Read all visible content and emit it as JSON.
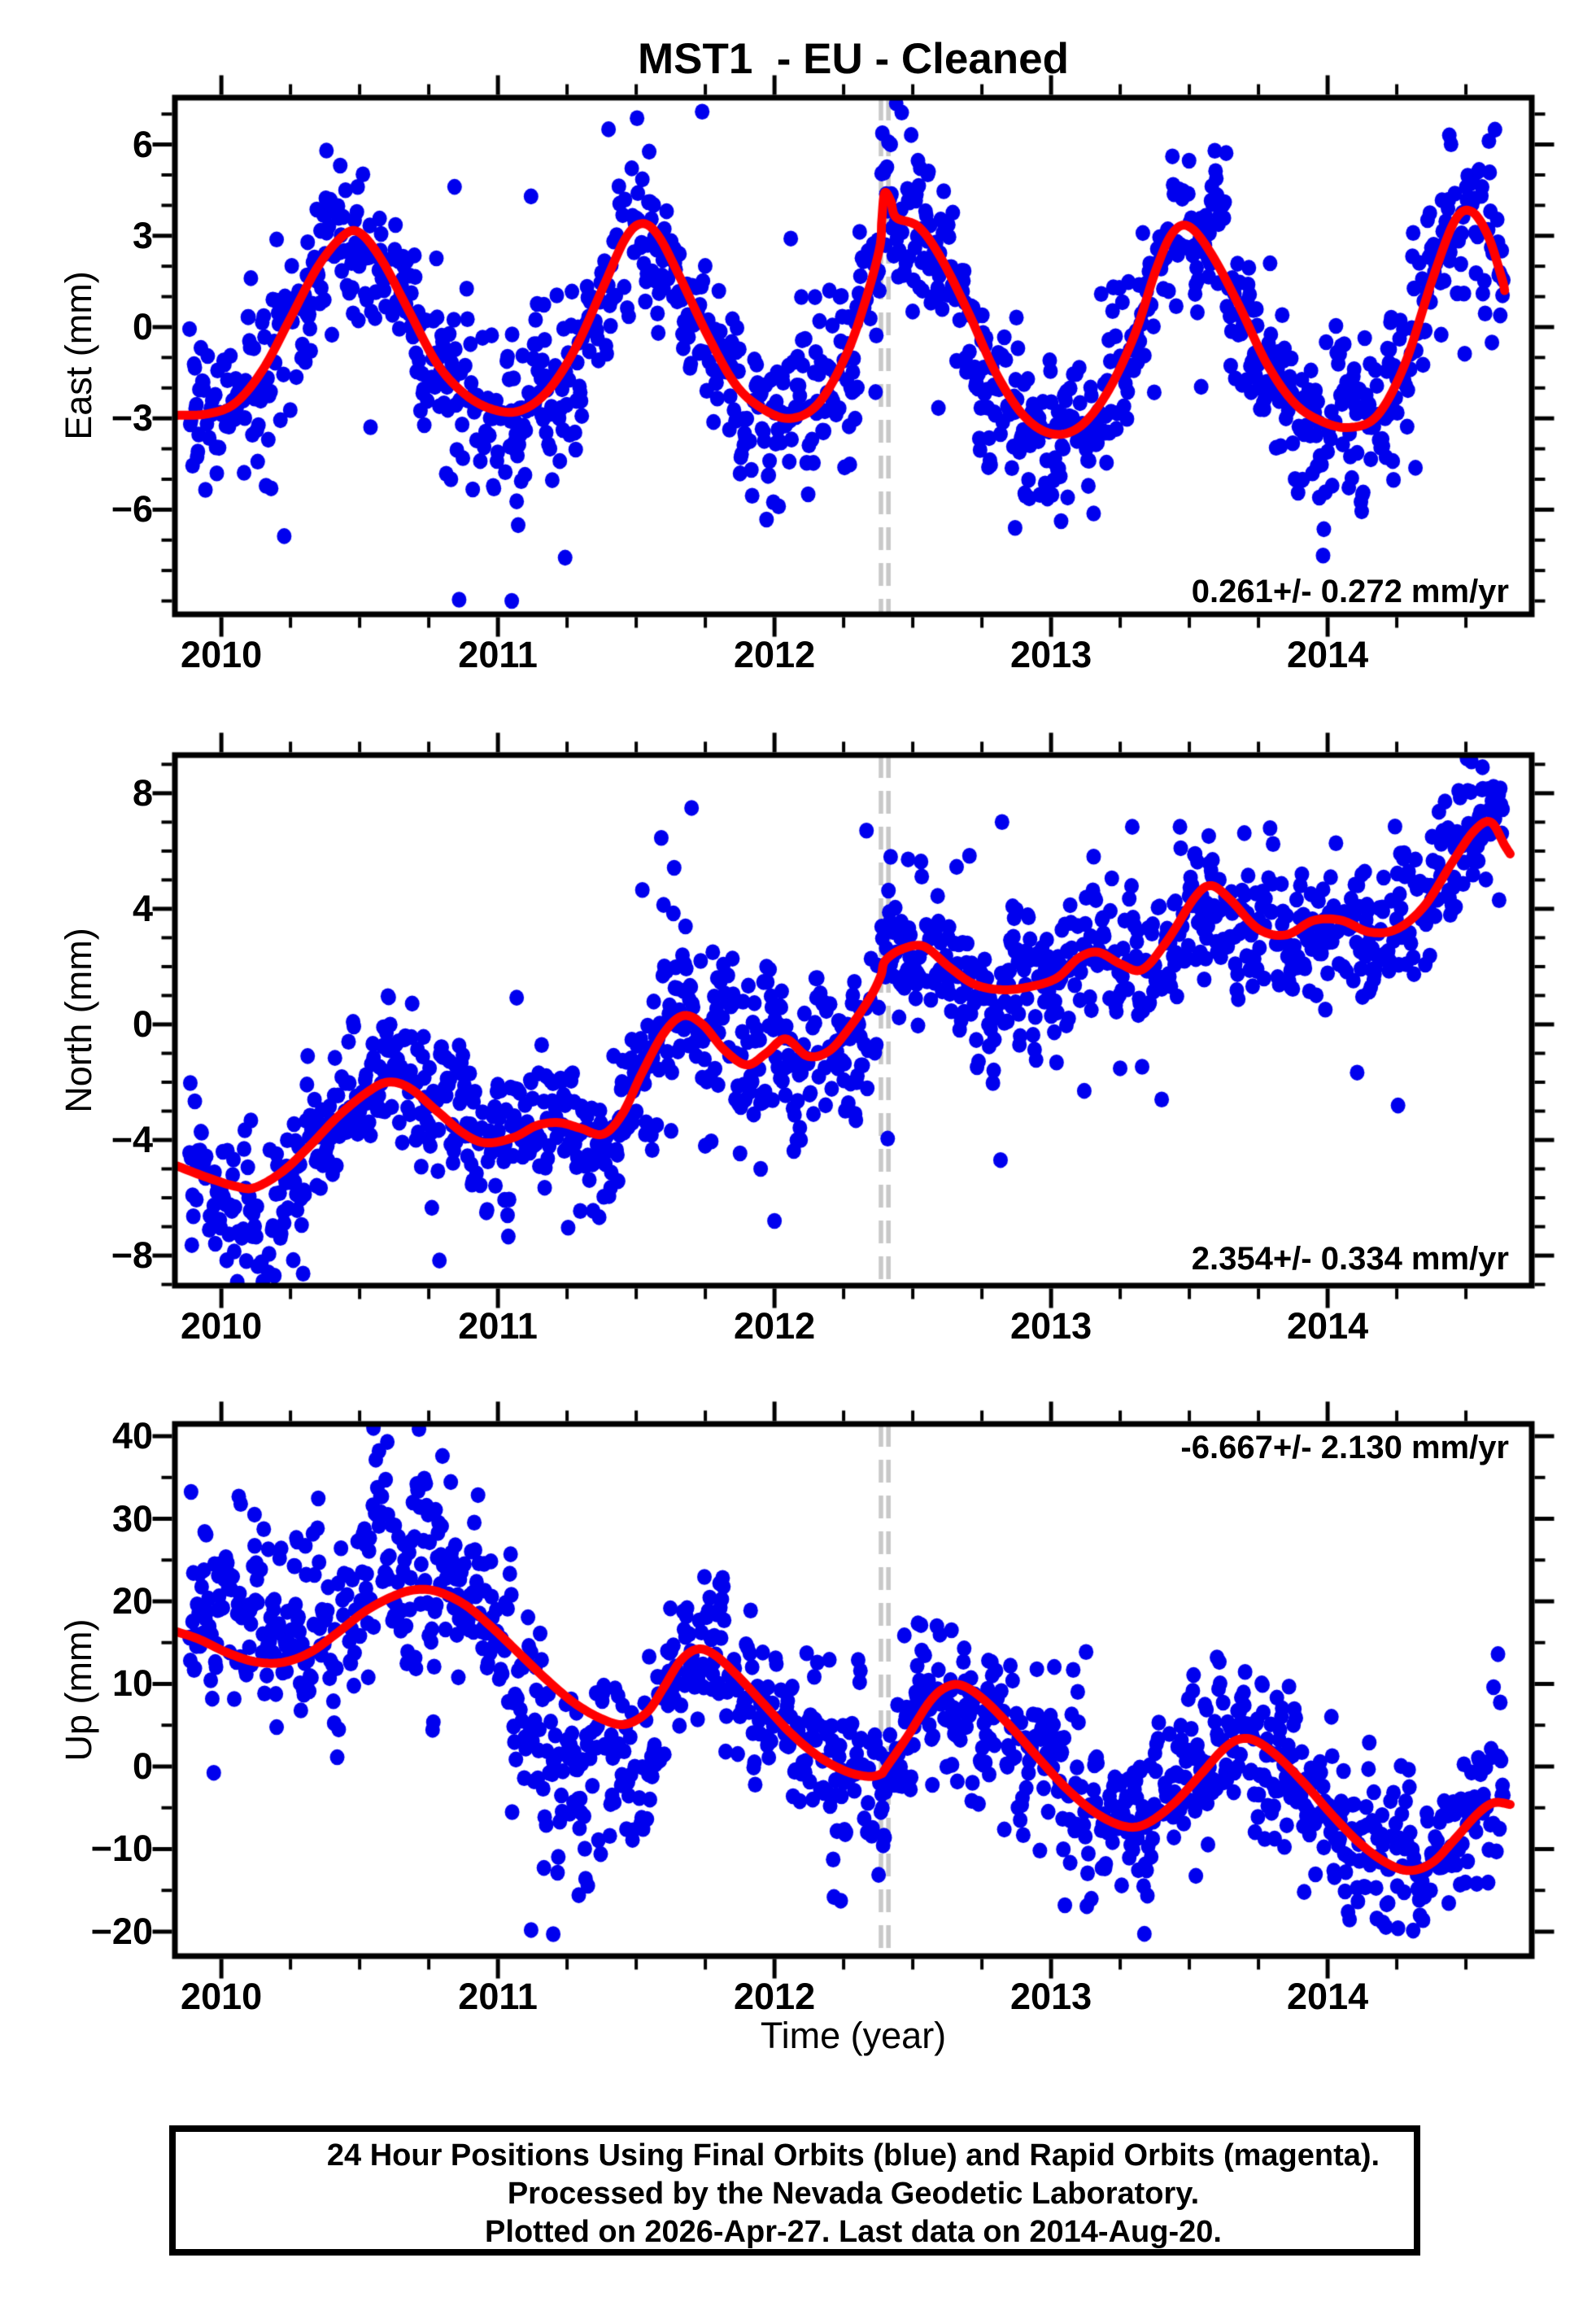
{
  "title": "MST1  - EU - Cleaned",
  "caption": {
    "lines": [
      "24 Hour Positions Using Final Orbits (blue) and Rapid Orbits (magenta).",
      "Processed by the Nevada Geodetic Laboratory.",
      "Plotted on 2026-Apr-27. Last data on 2014-Aug-20."
    ]
  },
  "colors": {
    "scatter_final": "#0000ee",
    "scatter_rapid": "#cc00cc",
    "model_curve": "#ff0000",
    "event_line": "#c8c8c8",
    "axis": "#000000"
  },
  "chart_data": {
    "type": "scatter",
    "xlabel": "Time (year)",
    "x_range": [
      2009.832,
      2014.738
    ],
    "x_ticks": [
      {
        "v": 2010,
        "label": "2010"
      },
      {
        "v": 2011,
        "label": "2011"
      },
      {
        "v": 2012,
        "label": "2012"
      },
      {
        "v": 2013,
        "label": "2013"
      },
      {
        "v": 2014,
        "label": "2014"
      }
    ],
    "x_minor_step": 0.25,
    "event_lines": {
      "times": [
        2012.385,
        2012.412
      ],
      "style": "dashed"
    },
    "panels": [
      {
        "id": "east",
        "ylabel": "East (mm)",
        "rate_label": "0.261+/- 0.272 mm/yr",
        "rate_position": "bottom-right",
        "ylim": [
          -9.44,
          7.54
        ],
        "y_minor_step": 1,
        "yticks": [
          {
            "v": 6,
            "label": "6"
          },
          {
            "v": 3,
            "label": "3"
          },
          {
            "v": 0,
            "label": "0"
          },
          {
            "v": -3,
            "label": "−3"
          },
          {
            "v": -6,
            "label": "−6"
          }
        ],
        "model_curve": [
          [
            2009.84,
            -2.9
          ],
          [
            2009.95,
            -2.85
          ],
          [
            2010.05,
            -2.5
          ],
          [
            2010.15,
            -1.4
          ],
          [
            2010.25,
            0.3
          ],
          [
            2010.35,
            2.0
          ],
          [
            2010.44,
            3.0
          ],
          [
            2010.5,
            3.1
          ],
          [
            2010.58,
            2.2
          ],
          [
            2010.68,
            0.5
          ],
          [
            2010.78,
            -1.2
          ],
          [
            2010.88,
            -2.2
          ],
          [
            2010.98,
            -2.7
          ],
          [
            2011.08,
            -2.75
          ],
          [
            2011.18,
            -2.1
          ],
          [
            2011.28,
            -0.7
          ],
          [
            2011.38,
            1.3
          ],
          [
            2011.46,
            2.9
          ],
          [
            2011.52,
            3.4
          ],
          [
            2011.58,
            3.0
          ],
          [
            2011.66,
            1.6
          ],
          [
            2011.76,
            -0.3
          ],
          [
            2011.86,
            -1.9
          ],
          [
            2011.96,
            -2.7
          ],
          [
            2012.06,
            -3.0
          ],
          [
            2012.16,
            -2.5
          ],
          [
            2012.26,
            -0.9
          ],
          [
            2012.33,
            0.9
          ],
          [
            2012.38,
            2.6
          ],
          [
            2012.388,
            3.5
          ],
          [
            2012.398,
            4.4
          ],
          [
            2012.42,
            4.15
          ],
          [
            2012.44,
            3.6
          ],
          [
            2012.52,
            3.3
          ],
          [
            2012.6,
            2.3
          ],
          [
            2012.7,
            0.5
          ],
          [
            2012.8,
            -1.5
          ],
          [
            2012.9,
            -2.9
          ],
          [
            2013.0,
            -3.5
          ],
          [
            2013.1,
            -3.3
          ],
          [
            2013.2,
            -2.2
          ],
          [
            2013.3,
            -0.3
          ],
          [
            2013.38,
            1.9
          ],
          [
            2013.44,
            3.1
          ],
          [
            2013.5,
            3.3
          ],
          [
            2013.58,
            2.4
          ],
          [
            2013.68,
            0.7
          ],
          [
            2013.78,
            -1.2
          ],
          [
            2013.88,
            -2.5
          ],
          [
            2013.98,
            -3.1
          ],
          [
            2014.08,
            -3.3
          ],
          [
            2014.18,
            -2.9
          ],
          [
            2014.28,
            -1.2
          ],
          [
            2014.38,
            1.6
          ],
          [
            2014.46,
            3.5
          ],
          [
            2014.52,
            3.8
          ],
          [
            2014.58,
            3.0
          ],
          [
            2014.63,
            1.6
          ],
          [
            2014.64,
            1.2
          ]
        ],
        "scatter": {
          "seed": 7,
          "t_start": 2009.885,
          "t_end": 2014.636,
          "keep_prob": 0.71,
          "sigma": 1.35,
          "ar": 0.45,
          "outlier_prob": 0.012,
          "regions": [
            {
              "t0": 2012.32,
              "t1": 2012.52,
              "sigma": 1.7
            }
          ],
          "extra_points": [
            [
              2010.38,
              5.8
            ],
            [
              2011.05,
              -9.0
            ],
            [
              2012.44,
              7.35
            ],
            [
              2012.46,
              7.05
            ],
            [
              2010.83,
              -5.0
            ],
            [
              2014.44,
              6.3
            ],
            [
              2012.87,
              -6.6
            ],
            [
              2010.18,
              -5.3
            ],
            [
              2013.06,
              -5.6
            ],
            [
              2011.4,
              6.5
            ]
          ]
        }
      },
      {
        "id": "north",
        "ylabel": "North (mm)",
        "rate_label": "2.354+/- 0.334 mm/yr",
        "rate_position": "bottom-right",
        "ylim": [
          -9.04,
          9.32
        ],
        "y_minor_step": 1,
        "yticks": [
          {
            "v": 8,
            "label": "8"
          },
          {
            "v": 4,
            "label": "4"
          },
          {
            "v": 0,
            "label": "0"
          },
          {
            "v": -4,
            "label": "−4"
          },
          {
            "v": -8,
            "label": "−8"
          }
        ],
        "model_curve": [
          [
            2009.84,
            -4.9
          ],
          [
            2009.95,
            -5.3
          ],
          [
            2010.05,
            -5.6
          ],
          [
            2010.12,
            -5.65
          ],
          [
            2010.22,
            -5.1
          ],
          [
            2010.32,
            -4.2
          ],
          [
            2010.42,
            -3.2
          ],
          [
            2010.52,
            -2.4
          ],
          [
            2010.6,
            -2.0
          ],
          [
            2010.68,
            -2.2
          ],
          [
            2010.78,
            -3.0
          ],
          [
            2010.88,
            -3.8
          ],
          [
            2010.96,
            -4.1
          ],
          [
            2011.06,
            -3.9
          ],
          [
            2011.14,
            -3.5
          ],
          [
            2011.22,
            -3.4
          ],
          [
            2011.3,
            -3.6
          ],
          [
            2011.38,
            -3.8
          ],
          [
            2011.45,
            -3.1
          ],
          [
            2011.52,
            -1.7
          ],
          [
            2011.6,
            -0.3
          ],
          [
            2011.67,
            0.3
          ],
          [
            2011.74,
            0.0
          ],
          [
            2011.82,
            -0.9
          ],
          [
            2011.9,
            -1.4
          ],
          [
            2011.97,
            -1.0
          ],
          [
            2012.04,
            -0.5
          ],
          [
            2012.12,
            -1.1
          ],
          [
            2012.2,
            -0.9
          ],
          [
            2012.28,
            0.0
          ],
          [
            2012.35,
            1.0
          ],
          [
            2012.385,
            1.7
          ],
          [
            2012.4,
            2.2
          ],
          [
            2012.46,
            2.6
          ],
          [
            2012.54,
            2.7
          ],
          [
            2012.63,
            2.0
          ],
          [
            2012.72,
            1.4
          ],
          [
            2012.82,
            1.2
          ],
          [
            2012.92,
            1.3
          ],
          [
            2013.02,
            1.6
          ],
          [
            2013.1,
            2.3
          ],
          [
            2013.17,
            2.5
          ],
          [
            2013.25,
            2.1
          ],
          [
            2013.33,
            1.9
          ],
          [
            2013.42,
            2.9
          ],
          [
            2013.52,
            4.4
          ],
          [
            2013.58,
            4.8
          ],
          [
            2013.65,
            4.3
          ],
          [
            2013.75,
            3.3
          ],
          [
            2013.85,
            3.1
          ],
          [
            2013.95,
            3.6
          ],
          [
            2014.05,
            3.6
          ],
          [
            2014.15,
            3.2
          ],
          [
            2014.25,
            3.3
          ],
          [
            2014.35,
            4.1
          ],
          [
            2014.45,
            5.6
          ],
          [
            2014.53,
            6.7
          ],
          [
            2014.59,
            7.0
          ],
          [
            2014.64,
            6.2
          ],
          [
            2014.66,
            5.9
          ]
        ],
        "scatter": {
          "seed": 13,
          "t_start": 2009.885,
          "t_end": 2014.636,
          "keep_prob": 0.72,
          "sigma": 1.35,
          "ar": 0.45,
          "outlier_prob": 0.012,
          "regions": [
            {
              "t0": 2009.88,
              "t1": 2010.3,
              "bias": -1.0,
              "sigma": 1.4
            },
            {
              "t0": 2011.6,
              "t1": 2012.05,
              "sigma": 1.7
            }
          ],
          "extra_points": [
            [
              2010.15,
              -8.9
            ],
            [
              2014.52,
              9.1
            ],
            [
              2014.56,
              8.9
            ],
            [
              2012.42,
              5.8
            ],
            [
              2013.4,
              -2.6
            ],
            [
              2012.0,
              -6.8
            ],
            [
              2013.12,
              -2.3
            ],
            [
              2011.95,
              -5.0
            ],
            [
              2014.62,
              4.3
            ]
          ]
        }
      },
      {
        "id": "up",
        "ylabel": "Up (mm)",
        "rate_label": "-6.667+/- 2.130 mm/yr",
        "rate_position": "top-right",
        "ylim": [
          -22.96,
          41.48
        ],
        "y_minor_step": 5,
        "yticks": [
          {
            "v": 40,
            "label": "40"
          },
          {
            "v": 30,
            "label": "30"
          },
          {
            "v": 20,
            "label": "20"
          },
          {
            "v": 10,
            "label": "10"
          },
          {
            "v": 0,
            "label": "0"
          },
          {
            "v": -10,
            "label": "−10"
          },
          {
            "v": -20,
            "label": "−20"
          }
        ],
        "model_curve": [
          [
            2009.84,
            16.3
          ],
          [
            2009.92,
            15.4
          ],
          [
            2010.02,
            13.8
          ],
          [
            2010.12,
            12.7
          ],
          [
            2010.22,
            12.6
          ],
          [
            2010.32,
            13.8
          ],
          [
            2010.42,
            16.2
          ],
          [
            2010.52,
            18.8
          ],
          [
            2010.62,
            20.6
          ],
          [
            2010.7,
            21.4
          ],
          [
            2010.78,
            21.2
          ],
          [
            2010.88,
            19.6
          ],
          [
            2010.98,
            16.8
          ],
          [
            2011.08,
            13.6
          ],
          [
            2011.18,
            10.4
          ],
          [
            2011.28,
            7.6
          ],
          [
            2011.38,
            5.7
          ],
          [
            2011.46,
            5.1
          ],
          [
            2011.54,
            6.6
          ],
          [
            2011.6,
            9.6
          ],
          [
            2011.66,
            12.8
          ],
          [
            2011.72,
            14.2
          ],
          [
            2011.78,
            13.6
          ],
          [
            2011.86,
            11.2
          ],
          [
            2011.96,
            7.6
          ],
          [
            2012.06,
            4.0
          ],
          [
            2012.16,
            1.2
          ],
          [
            2012.26,
            -0.6
          ],
          [
            2012.34,
            -1.2
          ],
          [
            2012.385,
            -0.9
          ],
          [
            2012.4,
            -0.3
          ],
          [
            2012.48,
            3.6
          ],
          [
            2012.56,
            7.8
          ],
          [
            2012.62,
            9.6
          ],
          [
            2012.68,
            9.8
          ],
          [
            2012.76,
            8.0
          ],
          [
            2012.86,
            4.6
          ],
          [
            2012.96,
            0.8
          ],
          [
            2013.06,
            -2.8
          ],
          [
            2013.16,
            -5.6
          ],
          [
            2013.26,
            -7.2
          ],
          [
            2013.34,
            -7.0
          ],
          [
            2013.44,
            -4.6
          ],
          [
            2013.54,
            -1.0
          ],
          [
            2013.62,
            2.0
          ],
          [
            2013.68,
            3.3
          ],
          [
            2013.74,
            3.1
          ],
          [
            2013.82,
            1.2
          ],
          [
            2013.92,
            -2.2
          ],
          [
            2014.02,
            -6.0
          ],
          [
            2014.12,
            -9.4
          ],
          [
            2014.22,
            -11.8
          ],
          [
            2014.3,
            -12.6
          ],
          [
            2014.38,
            -11.6
          ],
          [
            2014.46,
            -8.8
          ],
          [
            2014.54,
            -5.8
          ],
          [
            2014.6,
            -4.4
          ],
          [
            2014.66,
            -4.6
          ]
        ],
        "scatter": {
          "seed": 29,
          "t_start": 2009.885,
          "t_end": 2014.636,
          "keep_prob": 0.72,
          "sigma": 5.0,
          "ar": 0.45,
          "outlier_prob": 0.01,
          "regions": [
            {
              "t0": 2009.88,
              "t1": 2010.85,
              "bias": 4.0,
              "sigma": 6.2
            },
            {
              "t0": 2011.05,
              "t1": 2011.35,
              "bias": -8.5,
              "sigma": 7.0
            },
            {
              "t0": 2011.35,
              "t1": 2011.6,
              "bias": -3.5,
              "sigma": 6.0
            }
          ],
          "extra_points": [
            [
              2010.55,
              41.0
            ],
            [
              2010.6,
              39.3
            ],
            [
              2010.57,
              38.2
            ],
            [
              2011.12,
              -19.8
            ],
            [
              2011.2,
              -20.3
            ],
            [
              2012.64,
              16.5
            ],
            [
              2013.6,
              13.2
            ],
            [
              2014.2,
              -18.9
            ],
            [
              2013.05,
              -16.8
            ],
            [
              2014.6,
              9.6
            ],
            [
              2010.07,
              31.8
            ],
            [
              2010.12,
              30.5
            ]
          ]
        }
      }
    ]
  }
}
